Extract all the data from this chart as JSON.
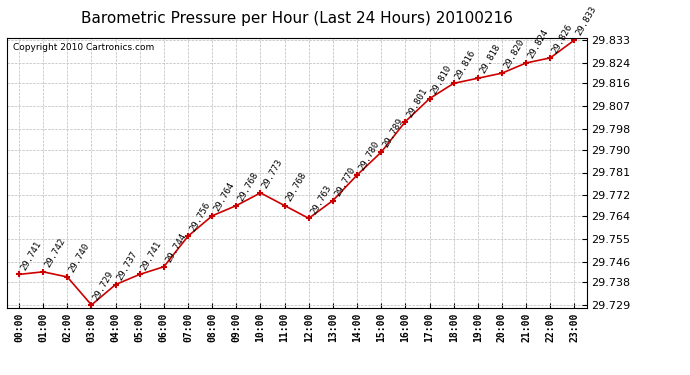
{
  "title": "Barometric Pressure per Hour (Last 24 Hours) 20100216",
  "copyright": "Copyright 2010 Cartronics.com",
  "hours": [
    "00:00",
    "01:00",
    "02:00",
    "03:00",
    "04:00",
    "05:00",
    "06:00",
    "07:00",
    "08:00",
    "09:00",
    "10:00",
    "11:00",
    "12:00",
    "13:00",
    "14:00",
    "15:00",
    "16:00",
    "17:00",
    "18:00",
    "19:00",
    "20:00",
    "21:00",
    "22:00",
    "23:00"
  ],
  "values": [
    29.741,
    29.742,
    29.74,
    29.729,
    29.737,
    29.741,
    29.744,
    29.756,
    29.764,
    29.768,
    29.773,
    29.768,
    29.763,
    29.77,
    29.78,
    29.789,
    29.801,
    29.81,
    29.816,
    29.818,
    29.82,
    29.824,
    29.826,
    29.833
  ],
  "ylim_min": 29.729,
  "ylim_max": 29.833,
  "yticks": [
    29.729,
    29.738,
    29.746,
    29.755,
    29.764,
    29.772,
    29.781,
    29.79,
    29.798,
    29.807,
    29.816,
    29.824,
    29.833
  ],
  "line_color": "#cc0000",
  "marker_color": "#cc0000",
  "bg_color": "#ffffff",
  "grid_color": "#bbbbbb",
  "title_fontsize": 11,
  "copyright_fontsize": 6.5,
  "label_fontsize": 6.5,
  "tick_fontsize": 7,
  "ytick_fontsize": 8
}
